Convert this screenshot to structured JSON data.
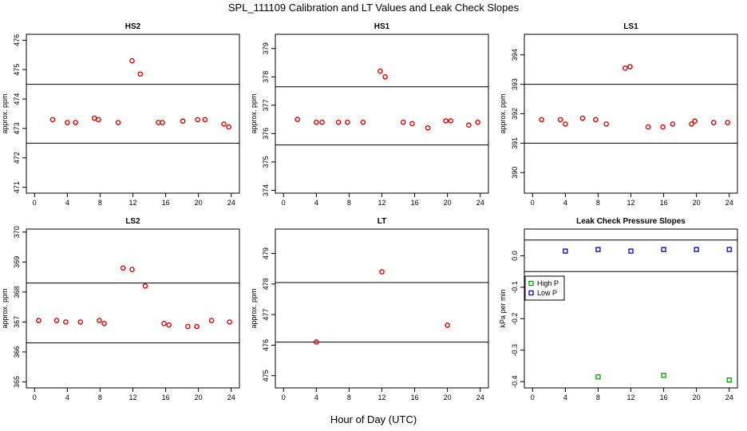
{
  "title": "SPL_111109  Calibration and LT Values and Leak Check Slopes",
  "xlabel": "Hour of Day (UTC)",
  "chart_data": [
    {
      "type": "scatter",
      "title": "HS2",
      "ylabel": "approx. ppm",
      "xlim": [
        -1,
        25
      ],
      "ylim": [
        470.8,
        476.2
      ],
      "xticks": [
        0,
        4,
        8,
        12,
        16,
        20,
        24
      ],
      "yticks": [
        471,
        472,
        473,
        474,
        475,
        476
      ],
      "hlines": [
        472.5,
        474.5
      ],
      "series": [
        {
          "color": "#e00000",
          "points": [
            [
              2.2,
              473.3
            ],
            [
              4,
              473.2
            ],
            [
              5,
              473.2
            ],
            [
              7.3,
              473.35
            ],
            [
              7.8,
              473.3
            ],
            [
              10.2,
              473.2
            ],
            [
              11.9,
              475.3
            ],
            [
              12.9,
              474.85
            ],
            [
              15.1,
              473.2
            ],
            [
              15.6,
              473.2
            ],
            [
              18.1,
              473.25
            ],
            [
              19.9,
              473.3
            ],
            [
              20.8,
              473.3
            ],
            [
              23.1,
              473.15
            ],
            [
              23.7,
              473.05
            ]
          ]
        }
      ]
    },
    {
      "type": "scatter",
      "title": "HS1",
      "ylabel": "approx. ppm",
      "xlim": [
        -1,
        25
      ],
      "ylim": [
        373.9,
        379.5
      ],
      "xticks": [
        0,
        4,
        8,
        12,
        16,
        20,
        24
      ],
      "yticks": [
        374,
        375,
        376,
        377,
        378,
        379
      ],
      "hlines": [
        375.6,
        377.65
      ],
      "series": [
        {
          "color": "#e00000",
          "points": [
            [
              1.7,
              376.5
            ],
            [
              4,
              376.4
            ],
            [
              4.7,
              376.4
            ],
            [
              6.7,
              376.4
            ],
            [
              7.8,
              376.4
            ],
            [
              9.7,
              376.4
            ],
            [
              11.8,
              378.2
            ],
            [
              12.4,
              378.0
            ],
            [
              14.6,
              376.4
            ],
            [
              15.7,
              376.35
            ],
            [
              17.6,
              376.2
            ],
            [
              19.8,
              376.45
            ],
            [
              20.4,
              376.45
            ],
            [
              22.6,
              376.3
            ],
            [
              23.7,
              376.4
            ]
          ]
        }
      ]
    },
    {
      "type": "scatter",
      "title": "LS1",
      "ylabel": "approx. ppm",
      "xlim": [
        -1,
        25
      ],
      "ylim": [
        389.3,
        394.7
      ],
      "xticks": [
        0,
        4,
        8,
        12,
        16,
        20,
        24
      ],
      "yticks": [
        390,
        391,
        392,
        393,
        394
      ],
      "hlines": [
        391,
        393
      ],
      "series": [
        {
          "color": "#e00000",
          "points": [
            [
              1.1,
              391.8
            ],
            [
              3.4,
              391.8
            ],
            [
              4,
              391.65
            ],
            [
              6.1,
              391.85
            ],
            [
              7.7,
              391.8
            ],
            [
              9,
              391.65
            ],
            [
              11.3,
              393.55
            ],
            [
              11.9,
              393.6
            ],
            [
              14.1,
              391.55
            ],
            [
              15.9,
              391.55
            ],
            [
              17.1,
              391.65
            ],
            [
              19.4,
              391.65
            ],
            [
              19.8,
              391.75
            ],
            [
              22.1,
              391.7
            ],
            [
              23.8,
              391.7
            ]
          ]
        }
      ]
    },
    {
      "type": "scatter",
      "title": "LS2",
      "ylabel": "approx. ppm",
      "xlim": [
        -1,
        25
      ],
      "ylim": [
        364.8,
        370.1
      ],
      "xticks": [
        0,
        4,
        8,
        12,
        16,
        20,
        24
      ],
      "yticks": [
        365,
        366,
        367,
        368,
        369,
        370
      ],
      "hlines": [
        366.3,
        368.3
      ],
      "series": [
        {
          "color": "#e00000",
          "points": [
            [
              0.5,
              367.05
            ],
            [
              2.7,
              367.05
            ],
            [
              3.8,
              367.0
            ],
            [
              5.6,
              367.0
            ],
            [
              7.9,
              367.05
            ],
            [
              8.5,
              366.95
            ],
            [
              10.8,
              368.8
            ],
            [
              11.9,
              368.75
            ],
            [
              13.5,
              368.2
            ],
            [
              15.8,
              366.95
            ],
            [
              16.4,
              366.9
            ],
            [
              18.7,
              366.85
            ],
            [
              19.8,
              366.85
            ],
            [
              21.6,
              367.05
            ],
            [
              23.8,
              367.0
            ]
          ]
        }
      ]
    },
    {
      "type": "scatter",
      "title": "LT",
      "ylabel": "approx. ppm",
      "xlim": [
        -1,
        25
      ],
      "ylim": [
        474.6,
        479.8
      ],
      "xticks": [
        0,
        4,
        8,
        12,
        16,
        20,
        24
      ],
      "yticks": [
        475,
        476,
        477,
        478,
        479
      ],
      "hlines": [
        476.1,
        478.05
      ],
      "series": [
        {
          "color": "#e00000",
          "points": [
            [
              4,
              476.1
            ],
            [
              12,
              478.4
            ],
            [
              20,
              476.65
            ]
          ]
        }
      ]
    },
    {
      "type": "scatter",
      "title": "Leak Check Pressure Slopes",
      "ylabel": "kPa per min",
      "xlim": [
        -1,
        25
      ],
      "ylim": [
        -0.42,
        0.085
      ],
      "xticks": [
        0,
        4,
        8,
        12,
        16,
        20,
        24
      ],
      "yticks": [
        -0.4,
        -0.3,
        -0.2,
        -0.1,
        0.0
      ],
      "ytick_labels": [
        "-0.4",
        "-0.3",
        "-0.2",
        "-0.1",
        "0.0"
      ],
      "hlines": [
        0.05,
        -0.05
      ],
      "legend": {
        "position": "left",
        "entries": [
          {
            "label": "High P",
            "color": "#00a000"
          },
          {
            "label": "Low P",
            "color": "#0000cc"
          }
        ]
      },
      "series": [
        {
          "name": "High P",
          "color": "#00a000",
          "points": [
            [
              8,
              -0.385
            ],
            [
              16,
              -0.38
            ],
            [
              24,
              -0.395
            ]
          ]
        },
        {
          "name": "Low P",
          "color": "#0000cc",
          "points": [
            [
              4,
              0.015
            ],
            [
              8,
              0.02
            ],
            [
              12,
              0.015
            ],
            [
              16,
              0.02
            ],
            [
              20,
              0.02
            ],
            [
              24,
              0.02
            ]
          ]
        }
      ]
    }
  ]
}
